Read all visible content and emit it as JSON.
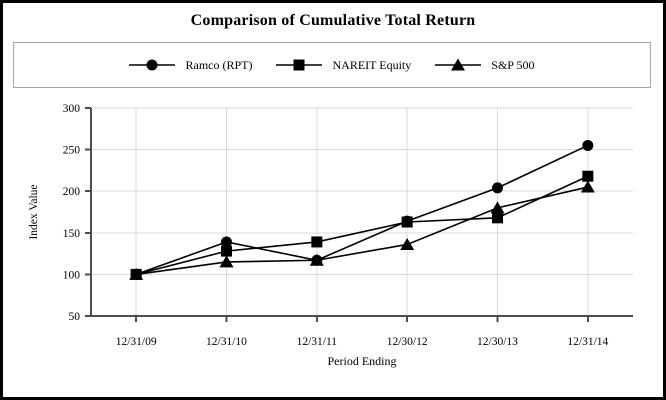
{
  "title": "Comparison of Cumulative Total Return",
  "legend": {
    "entries": [
      {
        "label": "Ramco (RPT)",
        "marker": "circle",
        "icon": "circle-marker-icon"
      },
      {
        "label": "NAREIT Equity",
        "marker": "square",
        "icon": "square-marker-icon"
      },
      {
        "label": "S&P 500",
        "marker": "triangle",
        "icon": "triangle-marker-icon"
      }
    ]
  },
  "chart_data": {
    "type": "line",
    "title": "Comparison of Cumulative Total Return",
    "xlabel": "Period Ending",
    "ylabel": "Index Value",
    "categories": [
      "12/31/09",
      "12/31/10",
      "12/31/11",
      "12/30/12",
      "12/30/13",
      "12/31/14"
    ],
    "series": [
      {
        "name": "Ramco (RPT)",
        "marker": "circle",
        "values": [
          100,
          139,
          117,
          164,
          204,
          255
        ]
      },
      {
        "name": "NAREIT Equity",
        "marker": "square",
        "values": [
          100,
          128,
          139,
          163,
          168,
          218
        ]
      },
      {
        "name": "S&P 500",
        "marker": "triangle",
        "values": [
          100,
          115,
          117,
          136,
          180,
          205
        ]
      }
    ],
    "ylim": [
      50,
      300
    ],
    "yticks": [
      50,
      100,
      150,
      200,
      250,
      300
    ],
    "grid": true,
    "legend_position": "top",
    "colors": {
      "series": "#000000",
      "grid": "#d9d9d9",
      "axis": "#4d4d4d",
      "text": "#000000",
      "legend_border": "#a6a6a6",
      "frame_border": "#000000",
      "background": "#ffffff"
    }
  }
}
